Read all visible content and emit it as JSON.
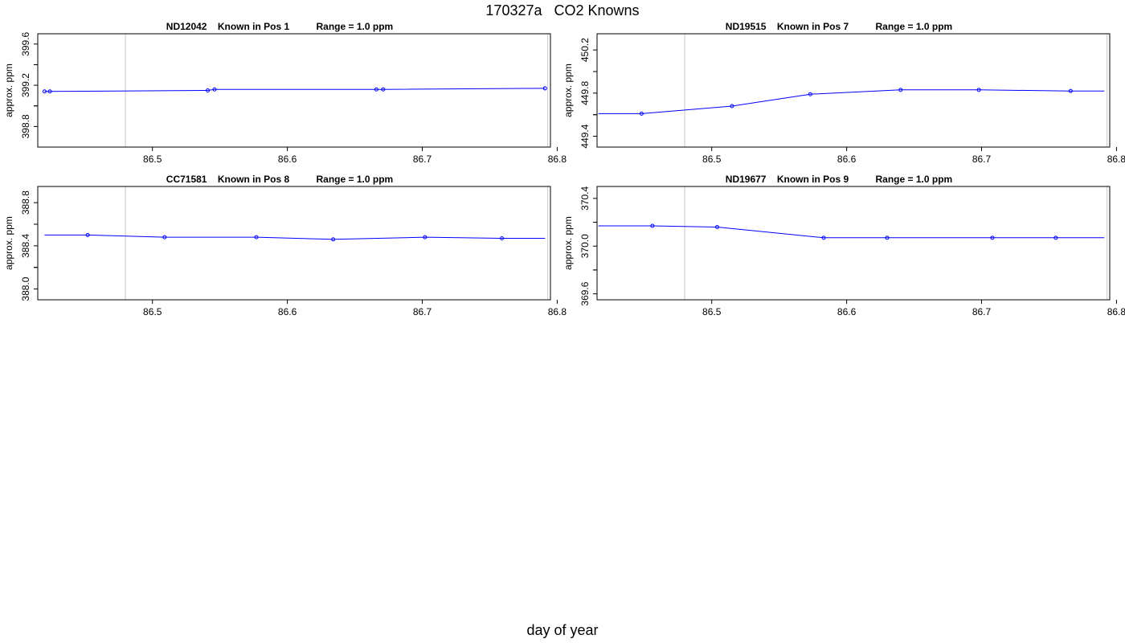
{
  "title": "170327a   CO2 Knowns",
  "xlabel": "day of year",
  "chart_data": [
    {
      "type": "line",
      "title": "ND12042    Known in Pos 1          Range = 1.0 ppm",
      "ylabel": "approx. ppm",
      "xlim": [
        86.415,
        86.795
      ],
      "ylim": [
        398.6,
        399.7
      ],
      "xticks": [
        "86.5",
        "86.6",
        "86.7",
        "86.8"
      ],
      "yticks": [
        "398.8",
        "399.2",
        "399.6"
      ],
      "vlines": [
        86.48,
        86.793
      ],
      "x": [
        86.42,
        86.424,
        86.541,
        86.546,
        86.666,
        86.671,
        86.791
      ],
      "y": [
        399.14,
        399.14,
        399.15,
        399.16,
        399.16,
        399.16,
        399.17
      ],
      "line_x": [
        86.42,
        86.541,
        86.546,
        86.666,
        86.671,
        86.791
      ],
      "line_y": [
        399.14,
        399.15,
        399.16,
        399.16,
        399.16,
        399.17
      ]
    },
    {
      "type": "line",
      "title": "ND19515    Known in Pos 7          Range = 1.0 ppm",
      "ylabel": "approx. ppm",
      "xlim": [
        86.415,
        86.795
      ],
      "ylim": [
        449.3,
        450.35
      ],
      "xticks": [
        "86.5",
        "86.6",
        "86.7",
        "86.8"
      ],
      "yticks": [
        "449.4",
        "449.8",
        "450.2"
      ],
      "vlines": [
        86.48,
        86.793
      ],
      "x": [
        86.448,
        86.515,
        86.573,
        86.64,
        86.698,
        86.766
      ],
      "y": [
        449.61,
        449.68,
        449.79,
        449.83,
        449.83,
        449.82
      ],
      "line_x": [
        86.416,
        86.448,
        86.515,
        86.573,
        86.64,
        86.698,
        86.766,
        86.791
      ],
      "line_y": [
        449.61,
        449.61,
        449.68,
        449.79,
        449.83,
        449.83,
        449.82,
        449.82
      ]
    },
    {
      "type": "line",
      "title": "CC71581    Known in Pos 8          Range = 1.0 ppm",
      "ylabel": "approx. ppm",
      "xlim": [
        86.415,
        86.795
      ],
      "ylim": [
        387.9,
        388.95
      ],
      "xticks": [
        "86.5",
        "86.6",
        "86.7",
        "86.8"
      ],
      "yticks": [
        "388.0",
        "388.4",
        "388.8"
      ],
      "vlines": [
        86.48,
        86.793
      ],
      "x": [
        86.452,
        86.509,
        86.577,
        86.634,
        86.702,
        86.759
      ],
      "y": [
        388.5,
        388.48,
        388.48,
        388.46,
        388.48,
        388.47
      ],
      "line_x": [
        86.42,
        86.452,
        86.509,
        86.577,
        86.634,
        86.702,
        86.759,
        86.791
      ],
      "line_y": [
        388.5,
        388.5,
        388.48,
        388.48,
        388.46,
        388.48,
        388.47,
        388.47
      ]
    },
    {
      "type": "line",
      "title": "ND19677    Known in Pos 9          Range = 1.0 ppm",
      "ylabel": "approx. ppm",
      "xlim": [
        86.415,
        86.795
      ],
      "ylim": [
        369.55,
        370.5
      ],
      "xticks": [
        "86.5",
        "86.6",
        "86.7",
        "86.8"
      ],
      "yticks": [
        "369.6",
        "370.0",
        "370.4"
      ],
      "vlines": [
        86.48,
        86.793
      ],
      "x": [
        86.456,
        86.504,
        86.583,
        86.63,
        86.708,
        86.755
      ],
      "y": [
        370.17,
        370.16,
        370.07,
        370.07,
        370.07,
        370.07
      ],
      "line_x": [
        86.416,
        86.456,
        86.504,
        86.583,
        86.63,
        86.708,
        86.755,
        86.791
      ],
      "line_y": [
        370.17,
        370.17,
        370.16,
        370.07,
        370.07,
        370.07,
        370.07,
        370.07
      ]
    }
  ]
}
